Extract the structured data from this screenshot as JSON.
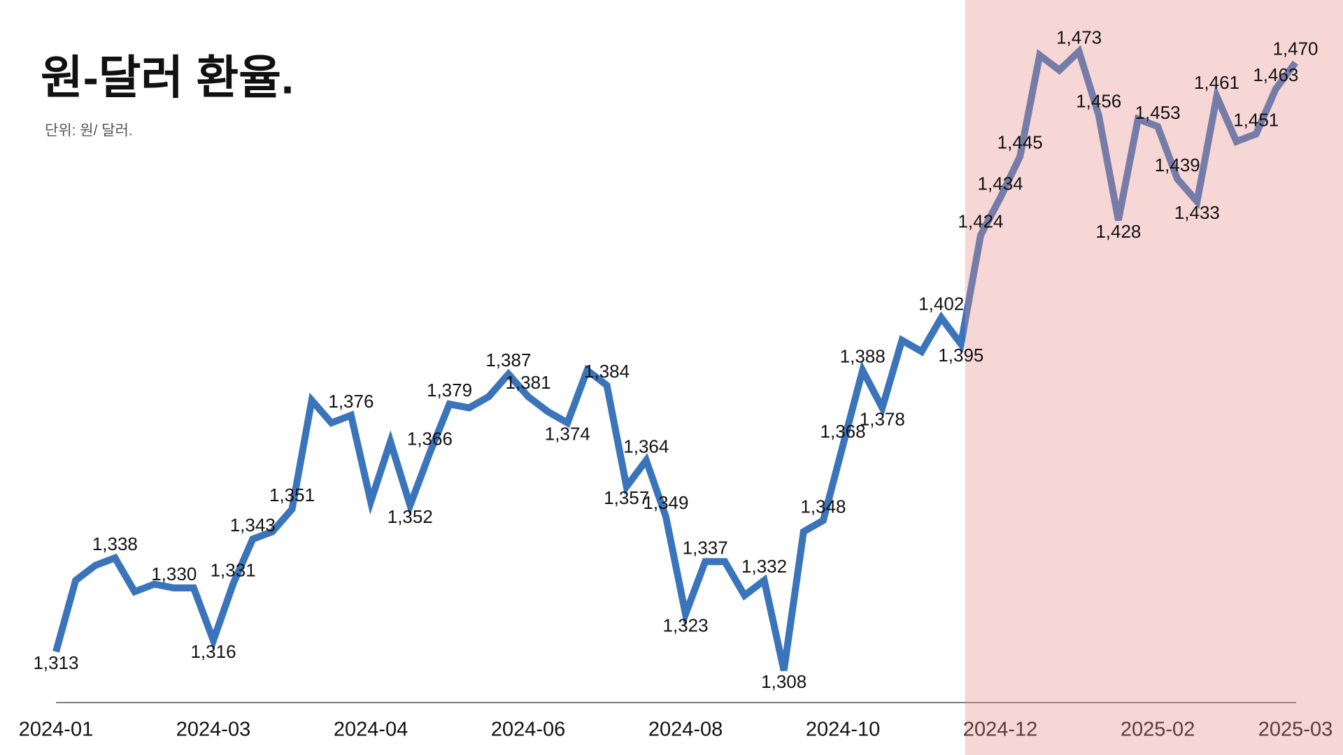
{
  "chart_data": {
    "type": "line",
    "title": "원-달러 환율.",
    "subtitle": "단위: 원/ 달러.",
    "categories": [
      "2024-01",
      null,
      null,
      null,
      null,
      null,
      null,
      null,
      "2024-03",
      null,
      null,
      null,
      null,
      null,
      null,
      null,
      "2024-04",
      null,
      null,
      null,
      null,
      null,
      null,
      null,
      "2024-06",
      null,
      null,
      null,
      null,
      null,
      null,
      null,
      "2024-08",
      null,
      null,
      null,
      null,
      null,
      null,
      null,
      "2024-10",
      null,
      null,
      null,
      null,
      null,
      null,
      null,
      "2024-12",
      null,
      null,
      null,
      null,
      null,
      null,
      null,
      "2025-02",
      null,
      null,
      null,
      null,
      null,
      null,
      "2025-03"
    ],
    "series": [
      {
        "name": "원-달러",
        "color": "#3a74ba",
        "values": [
          1313,
          1332,
          1336,
          1338,
          1329,
          1331,
          1330,
          1330,
          1316,
          1331,
          1343,
          1345,
          1351,
          1380,
          1374,
          1376,
          1353,
          1369,
          1352,
          1366,
          1379,
          1378,
          1381,
          1387,
          1381,
          1377,
          1374,
          1388,
          1384,
          1357,
          1364,
          1349,
          1323,
          1337,
          1337,
          1328,
          1332,
          1308,
          1345,
          1348,
          1368,
          1388,
          1378,
          1396,
          1393,
          1402,
          1395,
          1424,
          1434,
          1445,
          1472,
          1468,
          1473,
          1456,
          1428,
          1455,
          1453,
          1439,
          1433,
          1461,
          1449,
          1451,
          1463,
          1470
        ],
        "value_labels": [
          "1,313",
          null,
          null,
          "1,338",
          null,
          null,
          "1,330",
          null,
          "1,316",
          "1,331",
          "1,343",
          null,
          "1,351",
          null,
          null,
          "1,376",
          null,
          null,
          "1,352",
          "1,366",
          "1,379",
          null,
          null,
          "1,387",
          "1,381",
          null,
          "1,374",
          null,
          "1,384",
          "1,357",
          "1,364",
          "1,349",
          "1,323",
          "1,337",
          null,
          null,
          "1,332",
          "1,308",
          null,
          "1,348",
          "1,368",
          "1,388",
          "1,378",
          null,
          null,
          "1,402",
          "1,395",
          "1,424",
          "1,434",
          "1,445",
          null,
          null,
          "1,473",
          "1,456",
          "1,428",
          null,
          "1,453",
          "1,439",
          "1,433",
          "1,461",
          null,
          "1,451",
          "1,463",
          "1,470"
        ]
      }
    ],
    "ylim": [
      1300,
      1480
    ]
  }
}
